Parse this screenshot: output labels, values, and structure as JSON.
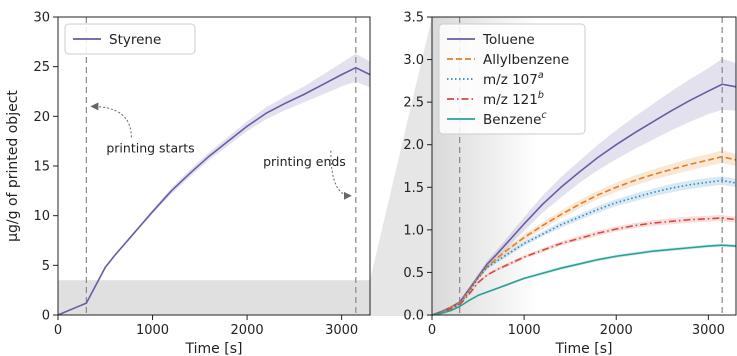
{
  "chart_data": [
    {
      "type": "line",
      "xlabel": "Time [s]",
      "ylabel": "μg/g of printed object",
      "xlim": [
        0,
        3300
      ],
      "ylim": [
        0,
        30
      ],
      "xticks": [
        "0",
        "1000",
        "2000",
        "3000"
      ],
      "yticks": [
        "0",
        "5",
        "10",
        "15",
        "20",
        "25",
        "30"
      ],
      "shaded_region_ylim": [
        0,
        3.5
      ],
      "vlines": [
        300,
        3150
      ],
      "legend_position": "top-left",
      "annotations": [
        {
          "text": "printing starts",
          "x_data": 300,
          "y_data": 21
        },
        {
          "text": "printing ends",
          "x_data": 3150,
          "y_data": 12
        }
      ],
      "series": [
        {
          "name": "Styrene",
          "color": "#6b5aa6",
          "style": "solid",
          "x": [
            0,
            100,
            200,
            300,
            400,
            500,
            600,
            700,
            800,
            900,
            1000,
            1200,
            1400,
            1600,
            1800,
            2000,
            2200,
            2400,
            2600,
            2800,
            3000,
            3150,
            3300
          ],
          "y": [
            0,
            0.4,
            0.8,
            1.2,
            3.0,
            4.8,
            6.0,
            7.1,
            8.2,
            9.3,
            10.4,
            12.5,
            14.3,
            16.0,
            17.5,
            19.0,
            20.3,
            21.3,
            22.2,
            23.2,
            24.2,
            24.9,
            24.2
          ],
          "band": [
            0,
            0.02,
            0.03,
            0.04,
            0.05,
            0.06,
            0.08,
            0.1,
            0.12,
            0.15,
            0.2,
            0.3,
            0.35,
            0.4,
            0.45,
            0.5,
            0.6,
            0.7,
            0.8,
            1.0,
            1.2,
            1.4,
            1.3
          ]
        }
      ]
    },
    {
      "type": "line",
      "xlabel": "Time [s]",
      "ylabel": "",
      "xlim": [
        0,
        3300
      ],
      "ylim": [
        0,
        3.5
      ],
      "xticks": [
        "0",
        "1000",
        "2000",
        "3000"
      ],
      "yticks": [
        "0.0",
        "0.5",
        "1.0",
        "1.5",
        "2.0",
        "2.5",
        "3.0",
        "3.5"
      ],
      "vlines": [
        300,
        3150
      ],
      "legend_position": "top-left",
      "series": [
        {
          "name": "Toluene",
          "sup": "",
          "color": "#6b5aa6",
          "style": "solid",
          "x": [
            0,
            100,
            200,
            300,
            400,
            500,
            600,
            700,
            800,
            900,
            1000,
            1200,
            1400,
            1600,
            1800,
            2000,
            2200,
            2400,
            2600,
            2800,
            3000,
            3150,
            3300
          ],
          "y": [
            0,
            0.04,
            0.09,
            0.15,
            0.3,
            0.45,
            0.6,
            0.71,
            0.83,
            0.95,
            1.07,
            1.3,
            1.5,
            1.68,
            1.85,
            2.0,
            2.14,
            2.27,
            2.4,
            2.52,
            2.63,
            2.71,
            2.68
          ],
          "band": [
            0,
            0.01,
            0.01,
            0.015,
            0.02,
            0.03,
            0.04,
            0.05,
            0.06,
            0.07,
            0.08,
            0.1,
            0.12,
            0.13,
            0.15,
            0.17,
            0.19,
            0.21,
            0.23,
            0.25,
            0.27,
            0.3,
            0.28
          ]
        },
        {
          "name": "Allylbenzene",
          "sup": "",
          "color": "#e67e22",
          "style": "dashed",
          "x": [
            0,
            100,
            200,
            300,
            400,
            500,
            600,
            700,
            800,
            900,
            1000,
            1200,
            1400,
            1600,
            1800,
            2000,
            2200,
            2400,
            2600,
            2800,
            3000,
            3150,
            3300
          ],
          "y": [
            0,
            0.04,
            0.09,
            0.14,
            0.28,
            0.44,
            0.57,
            0.66,
            0.75,
            0.83,
            0.91,
            1.05,
            1.18,
            1.3,
            1.41,
            1.5,
            1.58,
            1.65,
            1.71,
            1.77,
            1.82,
            1.86,
            1.82
          ],
          "band": [
            0,
            0.01,
            0.01,
            0.01,
            0.015,
            0.02,
            0.02,
            0.025,
            0.03,
            0.03,
            0.035,
            0.04,
            0.045,
            0.05,
            0.05,
            0.055,
            0.06,
            0.06,
            0.065,
            0.07,
            0.07,
            0.075,
            0.07
          ]
        },
        {
          "name": "m/z 107",
          "sup": "a",
          "color": "#2e86c1",
          "style": "dotted",
          "x": [
            0,
            100,
            200,
            300,
            400,
            500,
            600,
            700,
            800,
            900,
            1000,
            1200,
            1400,
            1600,
            1800,
            2000,
            2200,
            2400,
            2600,
            2800,
            3000,
            3150,
            3300
          ],
          "y": [
            0,
            0.04,
            0.08,
            0.13,
            0.27,
            0.43,
            0.56,
            0.63,
            0.7,
            0.77,
            0.84,
            0.95,
            1.06,
            1.15,
            1.24,
            1.32,
            1.38,
            1.44,
            1.49,
            1.53,
            1.56,
            1.58,
            1.55
          ],
          "band": [
            0,
            0.01,
            0.01,
            0.01,
            0.012,
            0.015,
            0.02,
            0.02,
            0.025,
            0.025,
            0.03,
            0.03,
            0.035,
            0.035,
            0.04,
            0.04,
            0.045,
            0.045,
            0.05,
            0.05,
            0.05,
            0.05,
            0.05
          ]
        },
        {
          "name": "m/z 121",
          "sup": "b",
          "color": "#d9483b",
          "style": "dashdot",
          "x": [
            0,
            100,
            200,
            300,
            400,
            500,
            600,
            700,
            800,
            900,
            1000,
            1200,
            1400,
            1600,
            1800,
            2000,
            2200,
            2400,
            2600,
            2800,
            3000,
            3150,
            3300
          ],
          "y": [
            0,
            0.03,
            0.07,
            0.12,
            0.24,
            0.38,
            0.47,
            0.53,
            0.58,
            0.63,
            0.68,
            0.76,
            0.84,
            0.9,
            0.96,
            1.01,
            1.05,
            1.08,
            1.1,
            1.12,
            1.13,
            1.14,
            1.12
          ],
          "band": [
            0,
            0.01,
            0.01,
            0.01,
            0.01,
            0.012,
            0.015,
            0.015,
            0.02,
            0.02,
            0.02,
            0.025,
            0.025,
            0.03,
            0.03,
            0.03,
            0.03,
            0.035,
            0.035,
            0.035,
            0.035,
            0.035,
            0.035
          ]
        },
        {
          "name": "Benzene",
          "sup": "c",
          "color": "#2aa198",
          "style": "solid",
          "x": [
            0,
            100,
            200,
            300,
            400,
            500,
            600,
            700,
            800,
            900,
            1000,
            1200,
            1400,
            1600,
            1800,
            2000,
            2200,
            2400,
            2600,
            2800,
            3000,
            3150,
            3300
          ],
          "y": [
            0,
            0.02,
            0.05,
            0.1,
            0.17,
            0.23,
            0.27,
            0.31,
            0.35,
            0.39,
            0.43,
            0.49,
            0.55,
            0.6,
            0.65,
            0.69,
            0.72,
            0.75,
            0.77,
            0.79,
            0.81,
            0.82,
            0.81
          ],
          "band": [
            0,
            0.005,
            0.005,
            0.008,
            0.01,
            0.01,
            0.012,
            0.012,
            0.015,
            0.015,
            0.015,
            0.02,
            0.02,
            0.02,
            0.02,
            0.02,
            0.02,
            0.02,
            0.02,
            0.02,
            0.02,
            0.02,
            0.02
          ]
        }
      ]
    }
  ]
}
